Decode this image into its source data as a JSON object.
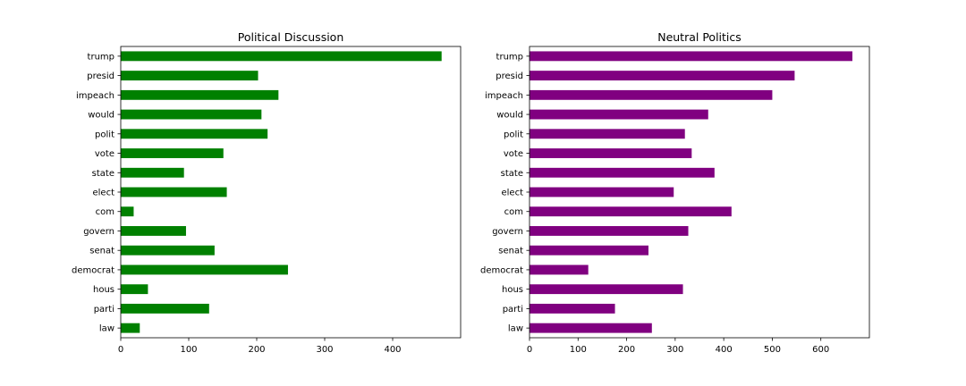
{
  "chart_data": [
    {
      "type": "bar",
      "orientation": "horizontal",
      "title": "Political Discussion",
      "categories": [
        "trump",
        "presid",
        "impeach",
        "would",
        "polit",
        "vote",
        "state",
        "elect",
        "com",
        "govern",
        "senat",
        "democrat",
        "hous",
        "parti",
        "law"
      ],
      "values": [
        472,
        202,
        232,
        207,
        216,
        151,
        93,
        156,
        19,
        96,
        138,
        246,
        40,
        130,
        28
      ],
      "xlim": [
        0,
        500
      ],
      "xticks": [
        0,
        100,
        200,
        300,
        400
      ],
      "xlabel": "",
      "ylabel": "",
      "grid": false,
      "color": "#008000"
    },
    {
      "type": "bar",
      "orientation": "horizontal",
      "title": "Neutral Politics",
      "categories": [
        "trump",
        "presid",
        "impeach",
        "would",
        "polit",
        "vote",
        "state",
        "elect",
        "com",
        "govern",
        "senat",
        "democrat",
        "hous",
        "parti",
        "law"
      ],
      "values": [
        665,
        546,
        500,
        368,
        320,
        334,
        381,
        297,
        416,
        327,
        245,
        121,
        316,
        176,
        252
      ],
      "xlim": [
        0,
        700
      ],
      "xticks": [
        0,
        100,
        200,
        300,
        400,
        500,
        600
      ],
      "xlabel": "",
      "ylabel": "",
      "grid": false,
      "color": "#800080"
    }
  ]
}
